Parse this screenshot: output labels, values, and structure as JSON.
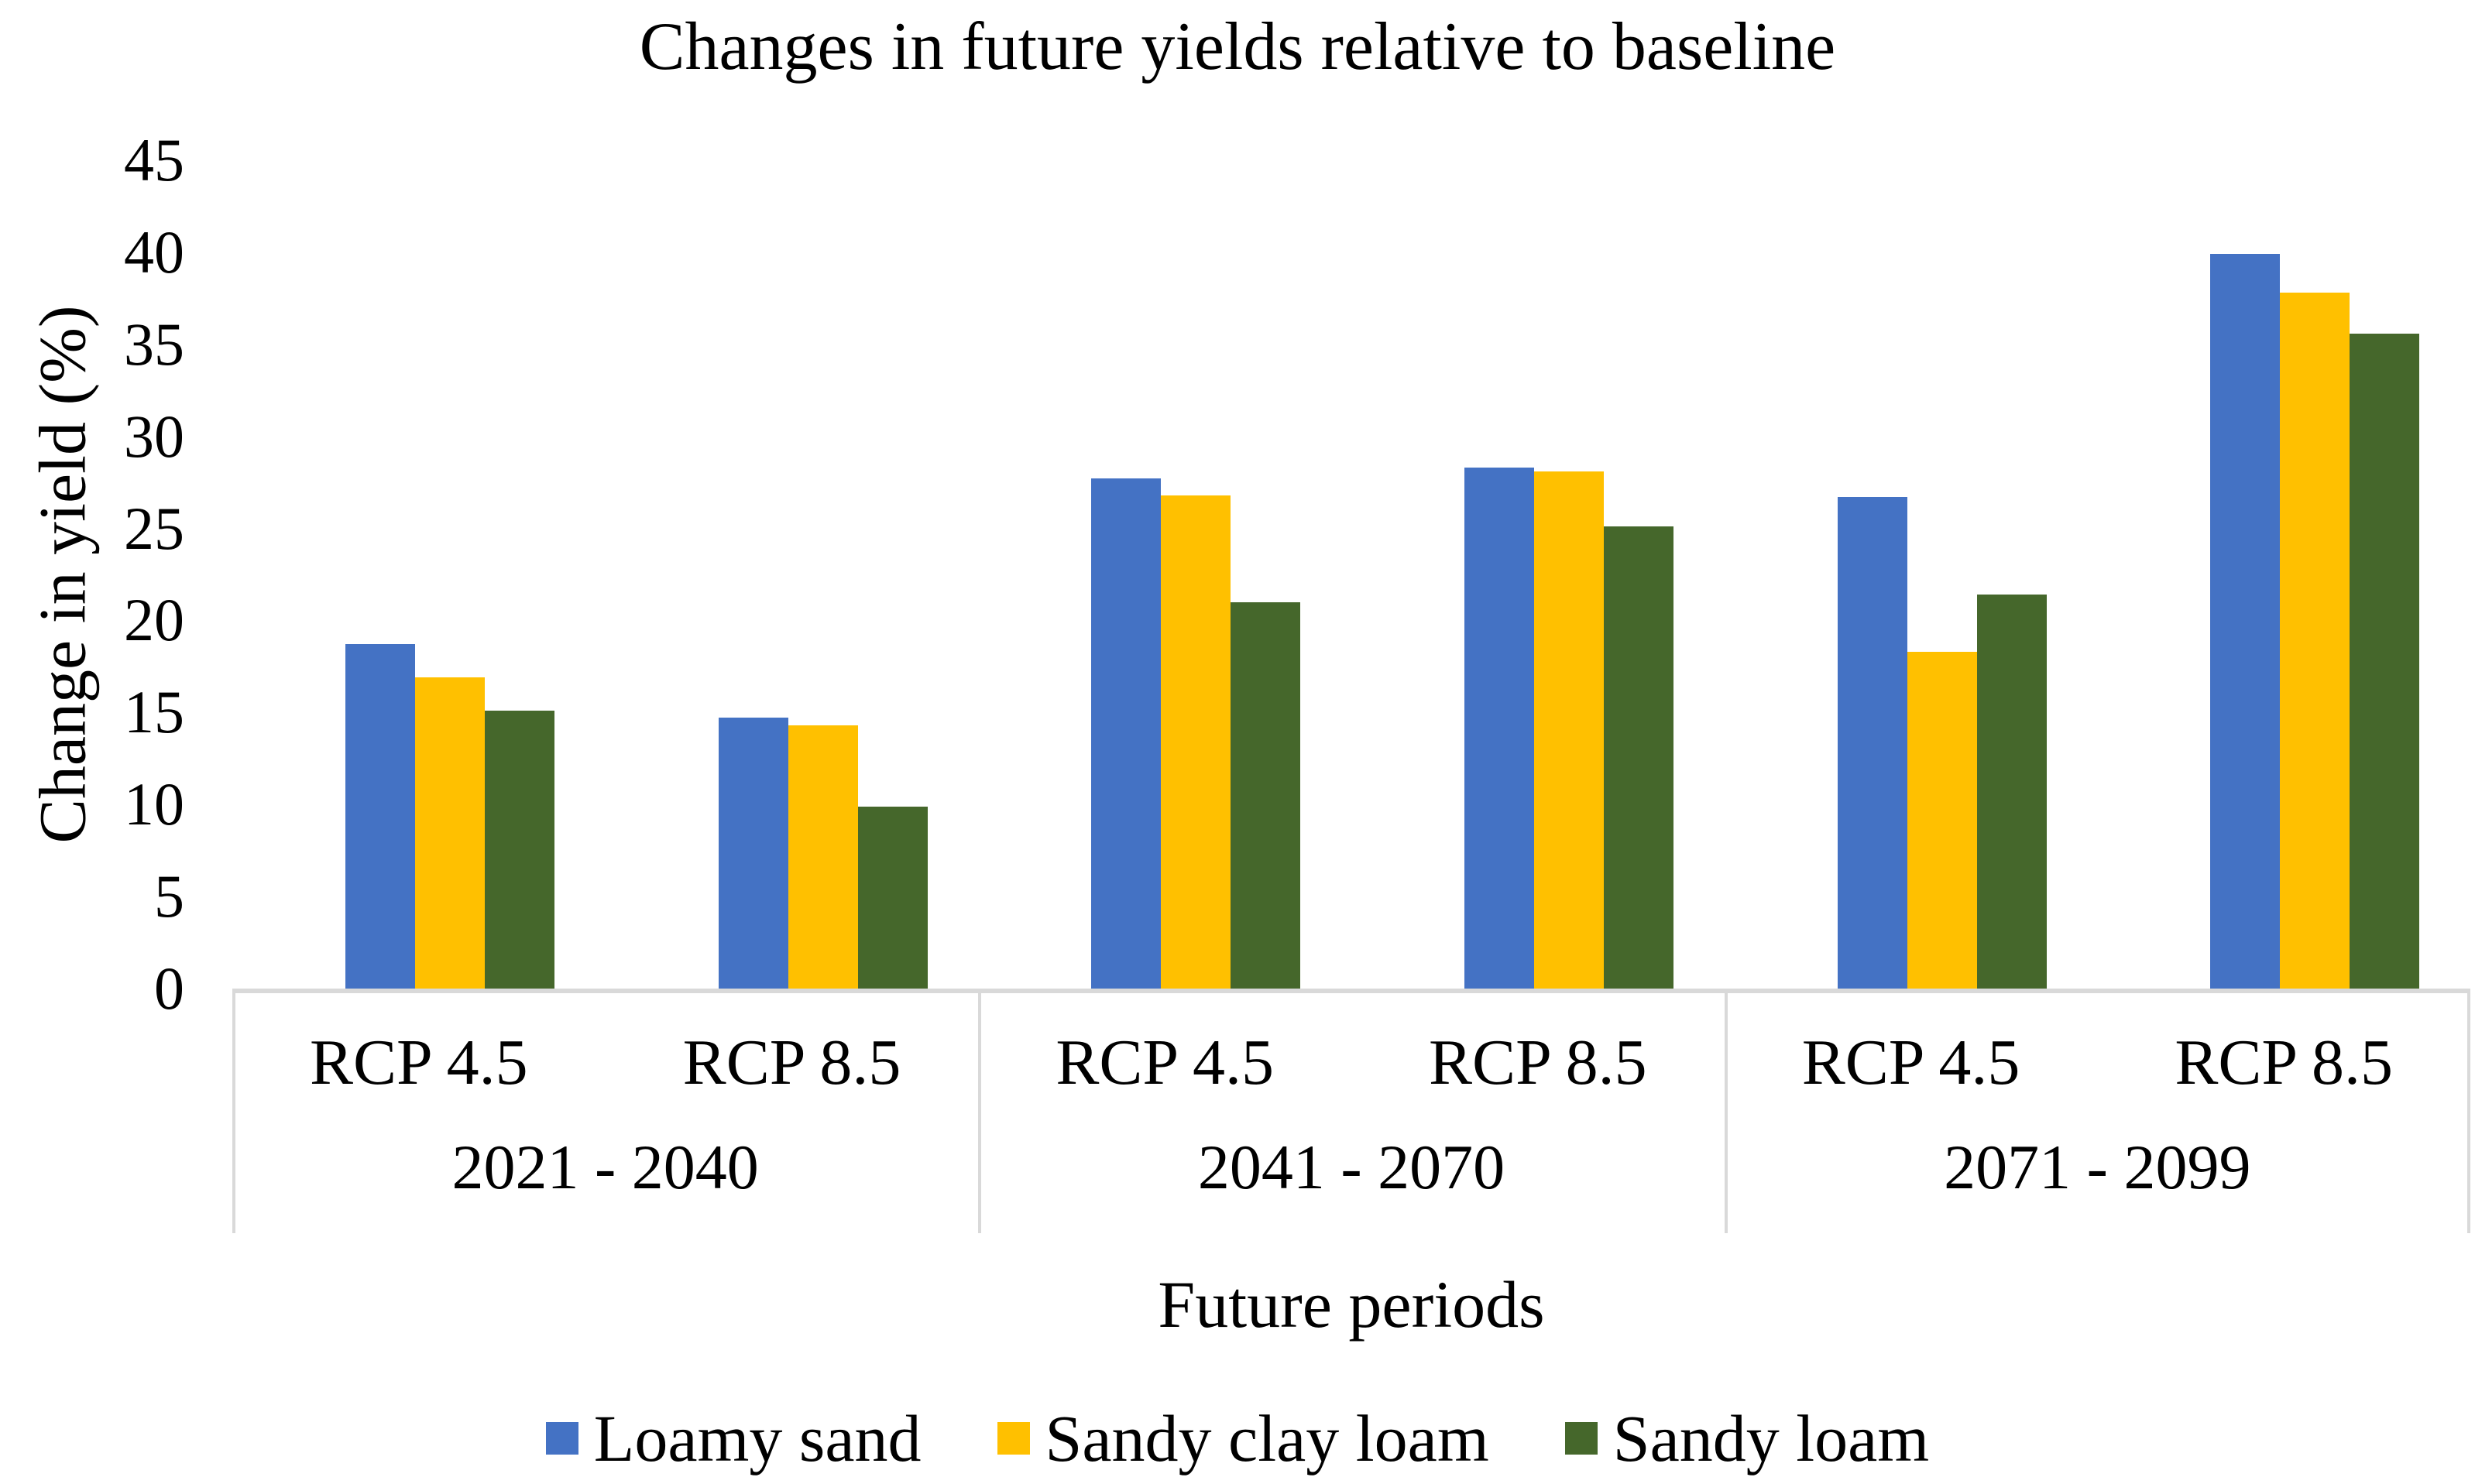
{
  "title": "Changes in future yields relative to baseline",
  "y_axis": {
    "title": "Change in yield (%)"
  },
  "x_axis": {
    "title": "Future periods"
  },
  "chart_data": {
    "type": "bar",
    "title": "Changes in future yields relative to baseline",
    "xlabel": "Future periods",
    "ylabel": "Change in yield (%)",
    "ylim": [
      0,
      45
    ],
    "y_ticks": [
      0,
      5,
      10,
      15,
      20,
      25,
      30,
      35,
      40,
      45
    ],
    "grid": false,
    "legend_position": "bottom",
    "axis_color": "#D9D9D9",
    "group_labels": [
      "2021 - 2040",
      "2041 - 2070",
      "2071 - 2099"
    ],
    "categories": [
      "RCP 4.5",
      "RCP 8.5",
      "RCP 4.5",
      "RCP 8.5",
      "RCP 4.5",
      "RCP 8.5"
    ],
    "series": [
      {
        "name": "Loamy sand",
        "color": "#4472C4",
        "values": [
          18.7,
          14.7,
          27.7,
          28.3,
          26.7,
          39.9
        ]
      },
      {
        "name": "Sandy clay loam",
        "color": "#FFC000",
        "values": [
          16.9,
          14.3,
          26.8,
          28.1,
          18.3,
          37.8
        ]
      },
      {
        "name": "Sandy loam",
        "color": "#45672B",
        "values": [
          15.1,
          9.9,
          21.0,
          25.1,
          21.4,
          35.6
        ]
      }
    ]
  }
}
